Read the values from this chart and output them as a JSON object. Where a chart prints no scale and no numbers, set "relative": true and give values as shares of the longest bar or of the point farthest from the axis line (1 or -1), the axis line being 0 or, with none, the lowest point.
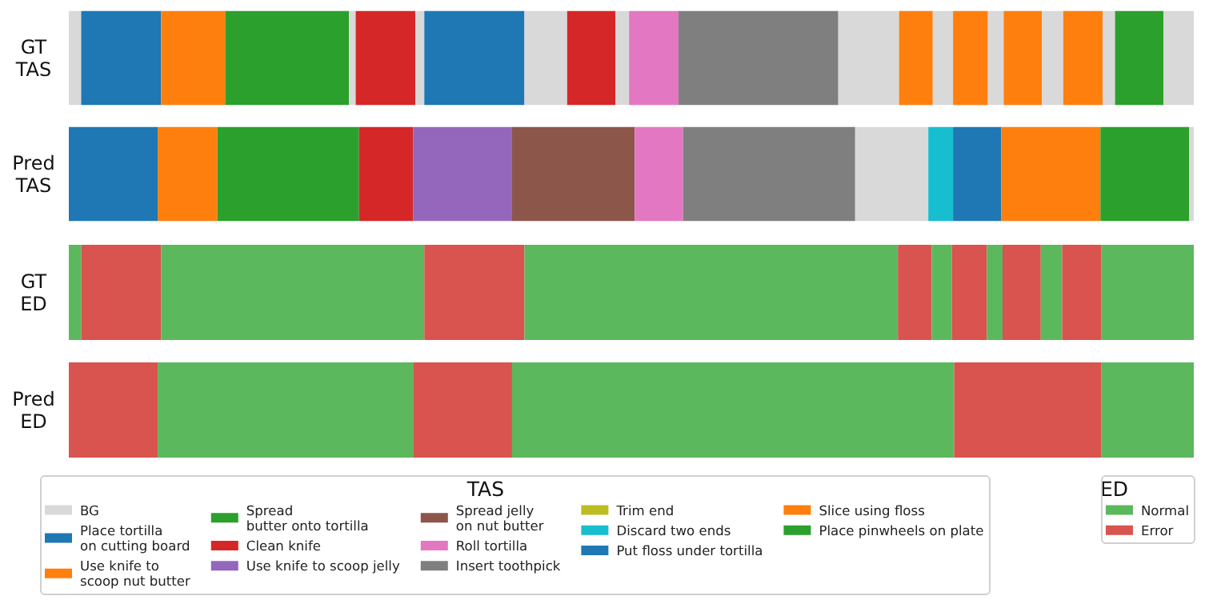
{
  "chart_data": [
    {
      "type": "bar",
      "orientation": "horizontal",
      "stacked": true,
      "relative": true,
      "categories": [
        "GT\nTAS",
        "Pred\nTAS"
      ],
      "legend": "bottom",
      "legend_title": "TAS",
      "series": [
        {
          "name": "BG",
          "color": "#d9d9d9",
          "values": [
            null,
            null
          ]
        },
        {
          "name": "Place tortilla\non cutting board",
          "color": "#1f77b4",
          "values": [
            null,
            null
          ]
        },
        {
          "name": "Use knife to\nscoop nut butter",
          "color": "#ff7f0e",
          "values": [
            null,
            null
          ]
        },
        {
          "name": "Spread\nbutter onto tortilla",
          "color": "#2ca02c",
          "values": [
            null,
            null
          ]
        },
        {
          "name": "Clean knife",
          "color": "#d62728",
          "values": [
            null,
            null
          ]
        },
        {
          "name": "Use knife to scoop jelly",
          "color": "#9467bd",
          "values": [
            null,
            null
          ]
        },
        {
          "name": "Spread jelly\non nut butter",
          "color": "#8c564b",
          "values": [
            null,
            null
          ]
        },
        {
          "name": "Roll tortilla",
          "color": "#e377c2",
          "values": [
            null,
            null
          ]
        },
        {
          "name": "Insert toothpick",
          "color": "#7f7f7f",
          "values": [
            null,
            null
          ]
        },
        {
          "name": "Trim end",
          "color": "#bcbd22",
          "values": [
            null,
            null
          ]
        },
        {
          "name": "Discard two ends",
          "color": "#17becf",
          "values": [
            null,
            null
          ]
        },
        {
          "name": "Put floss under tortilla",
          "color": "#1f77b4",
          "values": [
            null,
            null
          ]
        },
        {
          "name": "Slice using floss",
          "color": "#ff7f0e",
          "values": [
            null,
            null
          ]
        },
        {
          "name": "Place pinwheels on plate",
          "color": "#2ca02c",
          "values": [
            null,
            null
          ]
        },
        {
          "color": "#d9d9d9",
          "values": [
            0.011,
            null
          ]
        },
        {
          "color": "#1f77b4",
          "values": [
            0.071,
            null
          ]
        },
        {
          "color": "#ff7f0e",
          "values": [
            0.057,
            null
          ]
        },
        {
          "color": "#2ca02c",
          "values": [
            0.11,
            null
          ]
        },
        {
          "color": "#d9d9d9",
          "values": [
            0.006,
            null
          ]
        },
        {
          "color": "#d62728",
          "values": [
            0.053,
            null
          ]
        },
        {
          "color": "#d9d9d9",
          "values": [
            0.008,
            null
          ]
        },
        {
          "color": "#1f77b4",
          "values": [
            0.089,
            null
          ]
        },
        {
          "color": "#d9d9d9",
          "values": [
            0.038,
            null
          ]
        },
        {
          "color": "#d62728",
          "values": [
            0.043,
            null
          ]
        },
        {
          "color": "#d9d9d9",
          "values": [
            0.012,
            null
          ]
        },
        {
          "color": "#e377c2",
          "values": [
            0.044,
            null
          ]
        },
        {
          "color": "#7f7f7f",
          "values": [
            0.142,
            null
          ]
        },
        {
          "color": "#d9d9d9",
          "values": [
            0.054,
            null
          ]
        },
        {
          "color": "#ff7f0e",
          "values": [
            0.03,
            null
          ]
        },
        {
          "color": "#d9d9d9",
          "values": [
            0.018,
            null
          ]
        },
        {
          "color": "#ff7f0e",
          "values": [
            0.031,
            null
          ]
        },
        {
          "color": "#d9d9d9",
          "values": [
            0.014,
            null
          ]
        },
        {
          "color": "#ff7f0e",
          "values": [
            0.034,
            null
          ]
        },
        {
          "color": "#d9d9d9",
          "values": [
            0.019,
            null
          ]
        },
        {
          "color": "#ff7f0e",
          "values": [
            0.035,
            null
          ]
        },
        {
          "color": "#d9d9d9",
          "values": [
            0.011,
            null
          ]
        },
        {
          "color": "#2ca02c",
          "values": [
            0.043,
            null
          ]
        },
        {
          "color": "#d9d9d9",
          "values": [
            0.027,
            null
          ]
        },
        {
          "color": "#1f77b4",
          "values": [
            null,
            0.079
          ]
        },
        {
          "color": "#ff7f0e",
          "values": [
            null,
            0.053
          ]
        },
        {
          "color": "#2ca02c",
          "values": [
            null,
            0.126
          ]
        },
        {
          "color": "#d62728",
          "values": [
            null,
            0.048
          ]
        },
        {
          "color": "#9467bd",
          "values": [
            null,
            0.088
          ]
        },
        {
          "color": "#8c564b",
          "values": [
            null,
            0.109
          ]
        },
        {
          "color": "#e377c2",
          "values": [
            null,
            0.043
          ]
        },
        {
          "color": "#7f7f7f",
          "values": [
            null,
            0.153
          ]
        },
        {
          "color": "#d9d9d9",
          "values": [
            null,
            0.065
          ]
        },
        {
          "color": "#17becf",
          "values": [
            null,
            0.022
          ]
        },
        {
          "color": "#1f77b4",
          "values": [
            null,
            0.043
          ]
        },
        {
          "color": "#ff7f0e",
          "values": [
            null,
            0.088
          ]
        },
        {
          "color": "#2ca02c",
          "values": [
            null,
            0.079
          ]
        },
        {
          "color": "#d9d9d9",
          "values": [
            null,
            0.004
          ]
        }
      ]
    },
    {
      "type": "bar",
      "orientation": "horizontal",
      "stacked": true,
      "relative": true,
      "categories": [
        "GT\nED",
        "Pred\nED"
      ],
      "legend": "bottom right",
      "legend_title": "ED",
      "series": [
        {
          "name": "Normal",
          "color": "#5cb85c",
          "values": [
            null,
            null
          ]
        },
        {
          "name": "Error",
          "color": "#d9534f",
          "values": [
            null,
            null
          ]
        },
        {
          "color": "#5cb85c",
          "values": [
            0.011,
            null
          ]
        },
        {
          "color": "#d9534f",
          "values": [
            0.071,
            null
          ]
        },
        {
          "color": "#5cb85c",
          "values": [
            0.234,
            null
          ]
        },
        {
          "color": "#d9534f",
          "values": [
            0.089,
            null
          ]
        },
        {
          "color": "#5cb85c",
          "values": [
            0.332,
            null
          ]
        },
        {
          "color": "#d9534f",
          "values": [
            0.03,
            null
          ]
        },
        {
          "color": "#5cb85c",
          "values": [
            0.018,
            null
          ]
        },
        {
          "color": "#d9534f",
          "values": [
            0.031,
            null
          ]
        },
        {
          "color": "#5cb85c",
          "values": [
            0.014,
            null
          ]
        },
        {
          "color": "#d9534f",
          "values": [
            0.034,
            null
          ]
        },
        {
          "color": "#5cb85c",
          "values": [
            0.019,
            null
          ]
        },
        {
          "color": "#d9534f",
          "values": [
            0.035,
            null
          ]
        },
        {
          "color": "#5cb85c",
          "values": [
            0.082,
            null
          ]
        },
        {
          "color": "#d9534f",
          "values": [
            null,
            0.079
          ]
        },
        {
          "color": "#5cb85c",
          "values": [
            null,
            0.227
          ]
        },
        {
          "color": "#d9534f",
          "values": [
            null,
            0.088
          ]
        },
        {
          "color": "#5cb85c",
          "values": [
            null,
            0.393
          ]
        },
        {
          "color": "#d9534f",
          "values": [
            null,
            0.131
          ]
        },
        {
          "color": "#5cb85c",
          "values": [
            null,
            0.082
          ]
        }
      ]
    }
  ]
}
